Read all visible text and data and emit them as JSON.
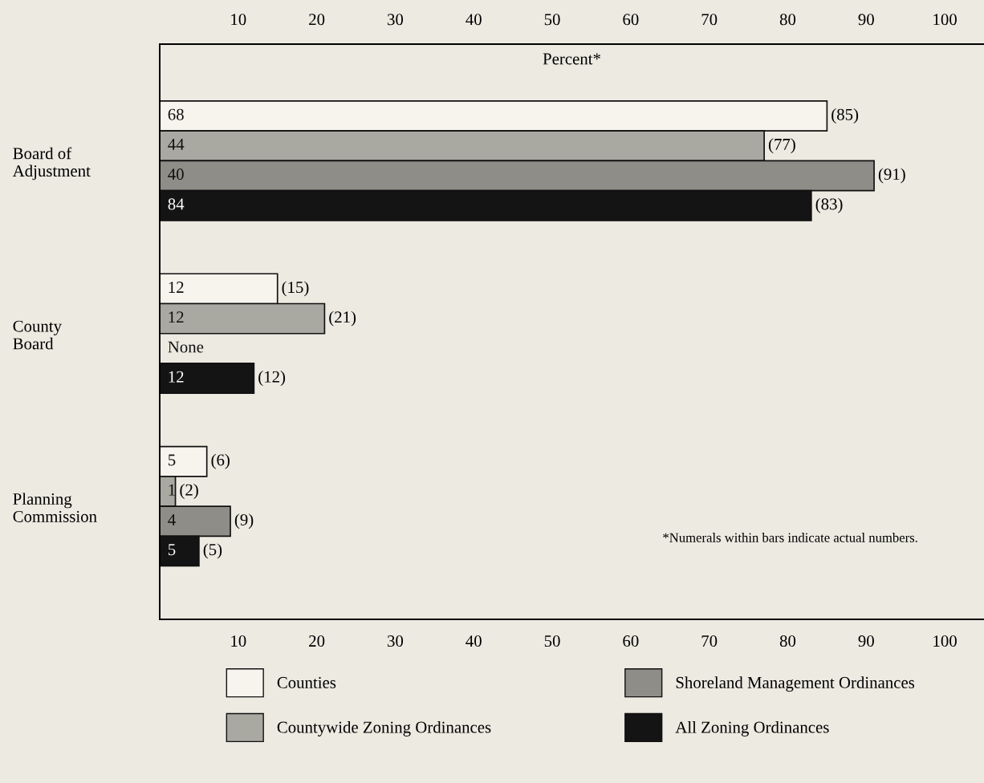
{
  "chart_data": {
    "type": "bar",
    "orientation": "horizontal",
    "categories": [
      "Board of\nAdjustment",
      "County\nBoard",
      "Planning\nCommission"
    ],
    "series": [
      {
        "name": "Counties",
        "color": "#f6f4ec",
        "values": [
          85,
          15,
          6
        ],
        "value_labels": [
          "(85)",
          "(15)",
          "(6)"
        ]
      },
      {
        "name": "Countywide Zoning Ordinances",
        "color": "#a9a8a1",
        "values": [
          77,
          21,
          2
        ],
        "value_labels": [
          "(77)",
          "(21)",
          "(2)"
        ]
      },
      {
        "name": "Shoreland Management Ordinances",
        "color": "#8e8d87",
        "values": [
          91,
          null,
          9
        ],
        "value_labels": [
          "(91)",
          null,
          "(9)"
        ]
      },
      {
        "name": "All Zoning Ordinances",
        "color": "#141414",
        "values": [
          83,
          12,
          5
        ],
        "value_labels": [
          "(83)",
          "(12)",
          "(5)"
        ]
      }
    ],
    "xlim": [
      0,
      105
    ],
    "xticks": [
      10,
      20,
      30,
      40,
      50,
      60,
      70,
      80,
      90,
      100
    ],
    "x2lim": [
      0,
      105
    ],
    "x2ticks": [
      10,
      20,
      30,
      40,
      50,
      60,
      70,
      80,
      90,
      100
    ],
    "grid": false,
    "legend": "bottom",
    "annotations": [
      "Percent*",
      "*Numerals within bars indicate actual numbers.",
      "68",
      "44",
      "40",
      "84",
      "12",
      "12",
      "None",
      "12",
      "5",
      "1",
      "4",
      "5"
    ]
  }
}
